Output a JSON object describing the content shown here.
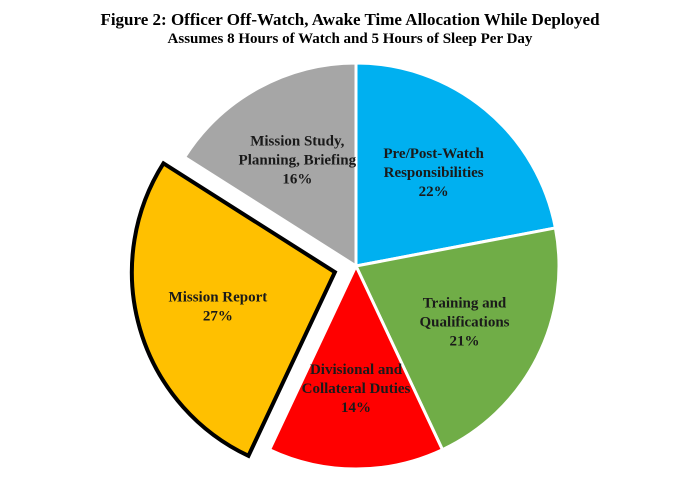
{
  "chart_data": {
    "type": "pie",
    "title": "Figure 2: Officer Off-Watch, Awake Time Allocation While Deployed",
    "subtitle": "Assumes 8 Hours of Watch and 5 Hours of Sleep Per Day",
    "slices": [
      {
        "label_lines": [
          "Pre/Post-Watch",
          "Responsibilities"
        ],
        "percent_label": "22%",
        "value": 22,
        "color": "#00B0F0",
        "exploded": false
      },
      {
        "label_lines": [
          "Training and",
          "Qualifications"
        ],
        "percent_label": "21%",
        "value": 21,
        "color": "#70AD47",
        "exploded": false
      },
      {
        "label_lines": [
          "Divisional and",
          "Collateral Duties"
        ],
        "percent_label": "14%",
        "value": 14,
        "color": "#FF0000",
        "exploded": false
      },
      {
        "label_lines": [
          "Mission Report"
        ],
        "percent_label": "27%",
        "value": 27,
        "color": "#FFC000",
        "exploded": true
      },
      {
        "label_lines": [
          "Mission Study,",
          "Planning, Briefing"
        ],
        "percent_label": "16%",
        "value": 16,
        "color": "#A6A6A6",
        "exploded": false
      }
    ]
  }
}
